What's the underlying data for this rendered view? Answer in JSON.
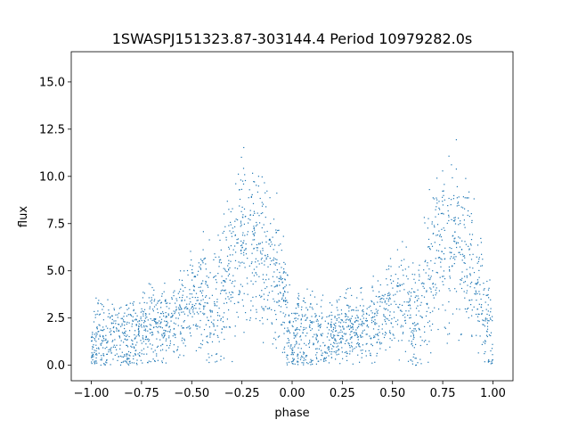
{
  "chart_data": {
    "type": "scatter",
    "title": "1SWASPJ151323.87-303144.4 Period 10979282.0s",
    "xlabel": "phase",
    "ylabel": "flux",
    "xlim": [
      -1.1,
      1.1
    ],
    "ylim": [
      -0.82,
      16.6
    ],
    "x_ticks": [
      -1.0,
      -0.75,
      -0.5,
      -0.25,
      0.0,
      0.25,
      0.5,
      0.75,
      1.0
    ],
    "x_tick_labels": [
      "−1.00",
      "−0.75",
      "−0.50",
      "−0.25",
      "0.00",
      "0.25",
      "0.50",
      "0.75",
      "1.00"
    ],
    "y_ticks": [
      0.0,
      2.5,
      5.0,
      7.5,
      10.0,
      12.5,
      15.0
    ],
    "y_tick_labels": [
      "0.0",
      "2.5",
      "5.0",
      "7.5",
      "10.0",
      "12.5",
      "15.0"
    ],
    "grid": false,
    "legend": "none",
    "marker_color": "#1f77b4",
    "series": [
      {
        "phase_profile_one_cycle": {
          "phase": [
            0.0,
            0.05,
            0.1,
            0.15,
            0.2,
            0.25,
            0.3,
            0.35,
            0.4,
            0.45,
            0.5,
            0.55,
            0.6,
            0.65,
            0.7,
            0.75,
            0.8,
            0.85,
            0.9,
            0.95,
            1.0
          ],
          "flux_median": [
            1.0,
            1.6,
            1.7,
            1.5,
            1.4,
            1.8,
            2.0,
            2.1,
            2.2,
            2.8,
            3.5,
            3.4,
            2.6,
            3.2,
            5.5,
            6.4,
            6.5,
            6.0,
            5.0,
            3.6,
            1.0
          ],
          "flux_spread": [
            1.5,
            2.5,
            1.8,
            1.6,
            1.4,
            1.5,
            1.6,
            1.6,
            1.6,
            1.8,
            2.2,
            2.4,
            2.8,
            3.2,
            3.5,
            3.8,
            4.0,
            3.8,
            3.5,
            3.0,
            1.5
          ]
        }
      }
    ]
  }
}
